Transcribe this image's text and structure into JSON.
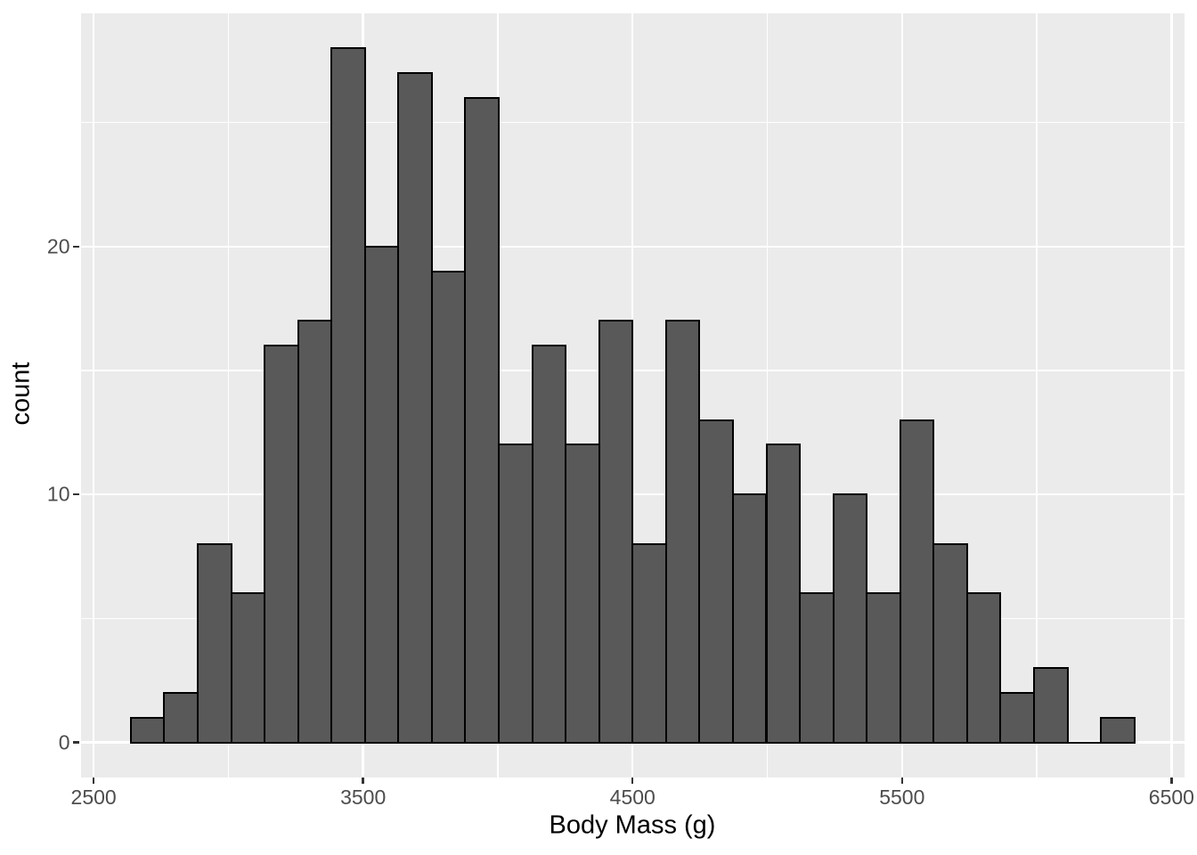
{
  "chart_data": {
    "type": "bar",
    "subtype": "histogram",
    "title": "",
    "xlabel": "Body Mass (g)",
    "ylabel": "count",
    "x_tick_labels": [
      "2500",
      "3500",
      "4500",
      "5500",
      "6500"
    ],
    "x_ticks": [
      2500,
      3500,
      4500,
      5500,
      6500
    ],
    "x_minor_ticks": [
      3000,
      4000,
      5000,
      6000
    ],
    "y_tick_labels": [
      "0",
      "10",
      "20"
    ],
    "y_ticks": [
      0,
      10,
      20
    ],
    "y_minor_ticks": [
      5,
      15,
      25
    ],
    "xlim": [
      2451.7,
      6548.3
    ],
    "ylim": [
      -1.4,
      29.4
    ],
    "grid": true,
    "legend": false,
    "bin_start": 2637.93,
    "bin_width": 124.14,
    "bin_centers": [
      2700,
      2824,
      2948,
      3072,
      3197,
      3321,
      3445,
      3569,
      3693,
      3817,
      3941,
      4066,
      4190,
      4314,
      4438,
      4562,
      4686,
      4810,
      4934,
      5059,
      5183,
      5307,
      5431,
      5555,
      5679,
      5803,
      5928,
      6052,
      6176,
      6300
    ],
    "counts": [
      1,
      2,
      8,
      6,
      16,
      17,
      28,
      20,
      27,
      19,
      26,
      12,
      16,
      12,
      17,
      8,
      17,
      13,
      10,
      12,
      6,
      10,
      6,
      13,
      8,
      6,
      2,
      3,
      0,
      1
    ],
    "total_n": 342
  },
  "style": {
    "panel_background": "#EBEBEB",
    "outer_background": "#FFFFFF",
    "gridline_color": "#FFFFFF",
    "bar_fill": "#595959",
    "bar_stroke": "#000000",
    "tick_mark_color": "#333333",
    "tick_label_color": "#4D4D4D",
    "axis_title_color": "#000000"
  }
}
